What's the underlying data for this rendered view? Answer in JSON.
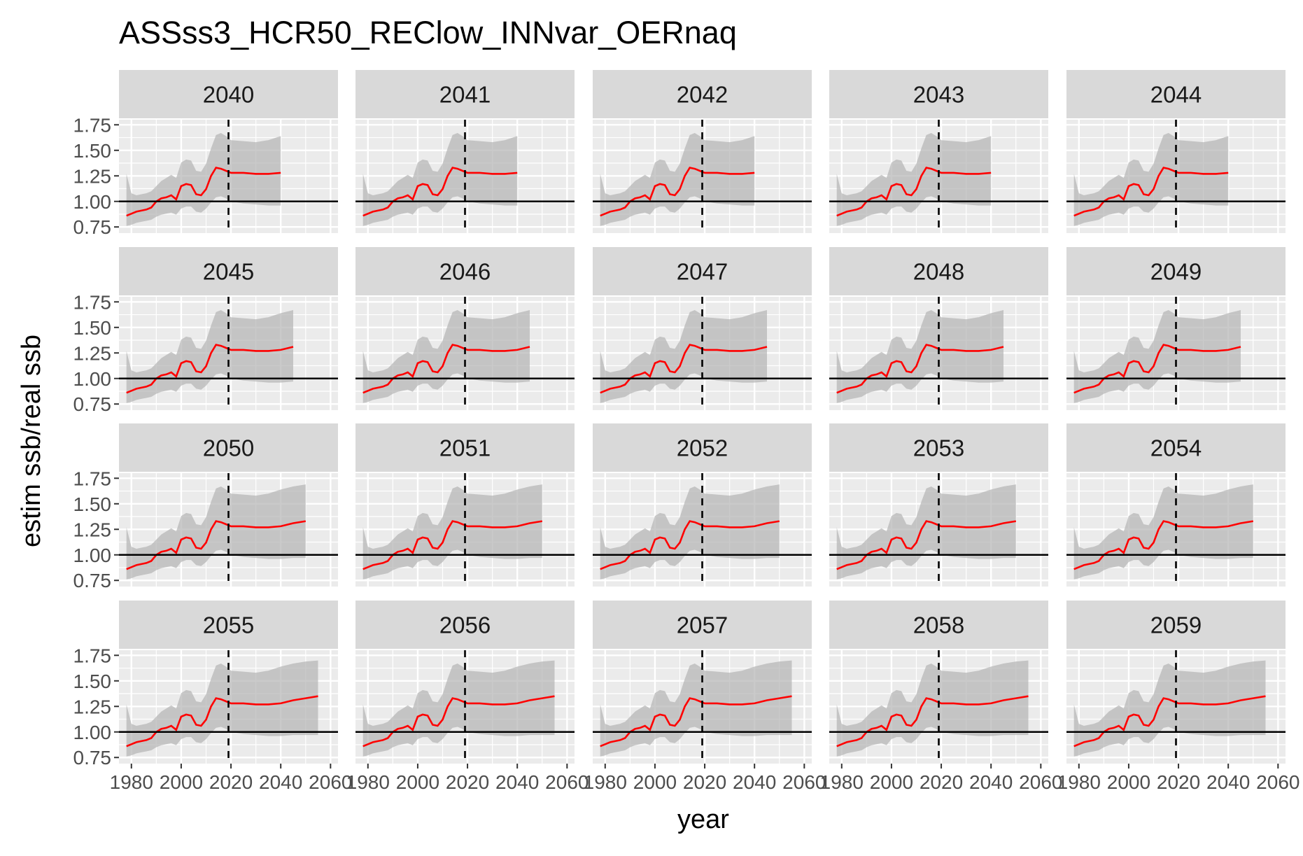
{
  "chart_data": {
    "type": "line",
    "title": "ASSss3_HCR50_REClow_INNvar_OERnaq",
    "xlabel": "year",
    "ylabel": "estim ssb/real ssb",
    "facets": [
      "2040",
      "2041",
      "2042",
      "2043",
      "2044",
      "2045",
      "2046",
      "2047",
      "2048",
      "2049",
      "2050",
      "2051",
      "2052",
      "2053",
      "2054",
      "2055",
      "2056",
      "2057",
      "2058",
      "2059"
    ],
    "facet_grid": {
      "cols": 5,
      "rows": 4
    },
    "xlim": [
      1975,
      2063
    ],
    "ylim": [
      0.69,
      1.8
    ],
    "x_ticks": [
      1980,
      2000,
      2020,
      2040,
      2060
    ],
    "x_tick_labels": [
      "1980",
      "2000",
      "2020",
      "2040",
      "2060"
    ],
    "y_ticks": [
      0.75,
      1.0,
      1.25,
      1.5,
      1.75
    ],
    "y_tick_labels": [
      "0.75",
      "1.00",
      "1.25",
      "1.50",
      "1.75"
    ],
    "reference_hline": 1.0,
    "reference_vline": 2019,
    "series": [
      {
        "kind": "median",
        "x": [
          1978,
          1980,
          1982,
          1984,
          1986,
          1988,
          1990,
          1992,
          1994,
          1996,
          1998,
          2000,
          2002,
          2004,
          2006,
          2008,
          2010,
          2012,
          2014,
          2016,
          2018,
          2020,
          2025,
          2030,
          2035,
          2040,
          2045,
          2050,
          2055,
          2060
        ],
        "y": [
          0.86,
          0.88,
          0.9,
          0.91,
          0.92,
          0.94,
          1.0,
          1.03,
          1.04,
          1.06,
          1.02,
          1.15,
          1.17,
          1.16,
          1.07,
          1.06,
          1.12,
          1.25,
          1.33,
          1.32,
          1.3,
          1.28,
          1.28,
          1.27,
          1.27,
          1.28,
          1.31,
          1.33,
          1.35,
          1.36
        ]
      },
      {
        "kind": "ci_lower",
        "x": [
          1978,
          1980,
          1982,
          1984,
          1986,
          1988,
          1990,
          1992,
          1994,
          1996,
          1998,
          2000,
          2002,
          2004,
          2006,
          2008,
          2010,
          2012,
          2014,
          2016,
          2018,
          2020,
          2025,
          2030,
          2035,
          2040,
          2045,
          2050,
          2055,
          2060
        ],
        "y": [
          0.76,
          0.77,
          0.79,
          0.8,
          0.81,
          0.82,
          0.85,
          0.87,
          0.88,
          0.89,
          0.87,
          0.93,
          0.95,
          0.95,
          0.9,
          0.89,
          0.93,
          0.99,
          1.04,
          1.05,
          1.03,
          1.0,
          0.98,
          0.97,
          0.96,
          0.96,
          0.97,
          0.97,
          0.97,
          0.97
        ]
      },
      {
        "kind": "ci_upper",
        "x": [
          1978,
          1980,
          1982,
          1984,
          1986,
          1988,
          1990,
          1992,
          1994,
          1996,
          1998,
          2000,
          2002,
          2004,
          2006,
          2008,
          2010,
          2012,
          2014,
          2016,
          2018,
          2020,
          2025,
          2030,
          2035,
          2040,
          2045,
          2050,
          2055,
          2060
        ],
        "y": [
          1.27,
          1.08,
          1.06,
          1.07,
          1.08,
          1.1,
          1.15,
          1.2,
          1.23,
          1.26,
          1.23,
          1.38,
          1.41,
          1.4,
          1.3,
          1.29,
          1.37,
          1.52,
          1.65,
          1.67,
          1.64,
          1.6,
          1.59,
          1.58,
          1.6,
          1.64,
          1.67,
          1.69,
          1.7,
          1.71
        ]
      }
    ],
    "colors": {
      "median_line": "#ff0000",
      "ribbon": "#b3b3b3",
      "panel_bg": "#ebebeb",
      "grid": "#ffffff",
      "strip_bg": "#d9d9d9",
      "reference": "#000000",
      "axis_text": "#4d4d4d"
    },
    "grid": true,
    "legend": "none"
  }
}
